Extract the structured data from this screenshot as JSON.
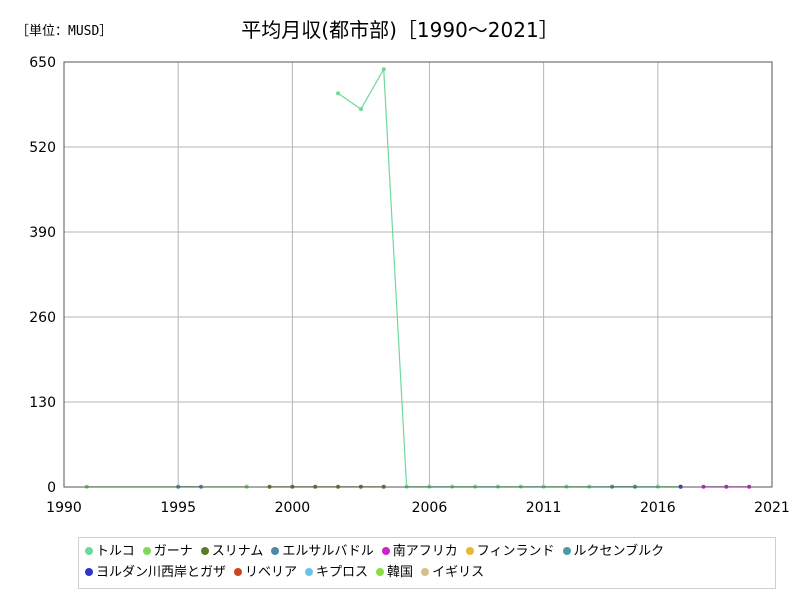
{
  "chart_data": {
    "type": "line",
    "unit_label": "［単位：MUSD］",
    "title": "平均月収(都市部)［1990～2021］",
    "xlabel": "",
    "ylabel": "",
    "xlim": [
      1990,
      2021
    ],
    "ylim": [
      0,
      650
    ],
    "x_ticks": [
      "1990",
      "1995",
      "2000",
      "2006",
      "2011",
      "2016",
      "2021"
    ],
    "y_ticks": [
      "0",
      "130",
      "260",
      "390",
      "520",
      "650"
    ],
    "grid": true,
    "legend_position": "bottom",
    "series": [
      {
        "name": "トルコ",
        "color": "#6ed99a",
        "x": [
          2002,
          2003,
          2004,
          2005,
          2006,
          2007,
          2008,
          2009,
          2010,
          2011,
          2012,
          2013,
          2014,
          2015,
          2016,
          2017
        ],
        "y": [
          602,
          578,
          639,
          0.5,
          0.5,
          0.5,
          0.5,
          0.5,
          0.5,
          0.5,
          0.5,
          0.5,
          0.5,
          0.5,
          0.5,
          0.5
        ]
      },
      {
        "name": "ガーナ",
        "color": "#7ed957",
        "x": [
          1991,
          1998
        ],
        "y": [
          0.3,
          0.3
        ]
      },
      {
        "name": "スリナム",
        "color": "#5a7a2e",
        "x": [
          1999,
          2000,
          2001,
          2002,
          2003,
          2004
        ],
        "y": [
          0.3,
          0.3,
          0.3,
          0.3,
          0.3,
          0.3
        ]
      },
      {
        "name": "エルサルバドル",
        "color": "#4a8aa8",
        "x": [
          1995,
          1996
        ],
        "y": [
          0.3,
          0.3
        ]
      },
      {
        "name": "南アフリカ",
        "color": "#cc22cc",
        "x": [
          2018,
          2019,
          2020
        ],
        "y": [
          0.3,
          0.3,
          0.3
        ]
      },
      {
        "name": "フィンランド",
        "color": "#e8b830",
        "x": [],
        "y": []
      },
      {
        "name": "ルクセンブルク",
        "color": "#4a9aa0",
        "x": [
          2014,
          2015
        ],
        "y": [
          0.3,
          0.3
        ]
      },
      {
        "name": "ヨルダン川西岸とガザ",
        "color": "#3333cc",
        "x": [
          2017
        ],
        "y": [
          0.3
        ]
      },
      {
        "name": "リベリア",
        "color": "#cc4422",
        "x": [],
        "y": []
      },
      {
        "name": "キプロス",
        "color": "#66c4e8",
        "x": [],
        "y": []
      },
      {
        "name": "韓国",
        "color": "#88dd44",
        "x": [],
        "y": []
      },
      {
        "name": "イギリス",
        "color": "#d4c08a",
        "x": [],
        "y": []
      }
    ]
  }
}
